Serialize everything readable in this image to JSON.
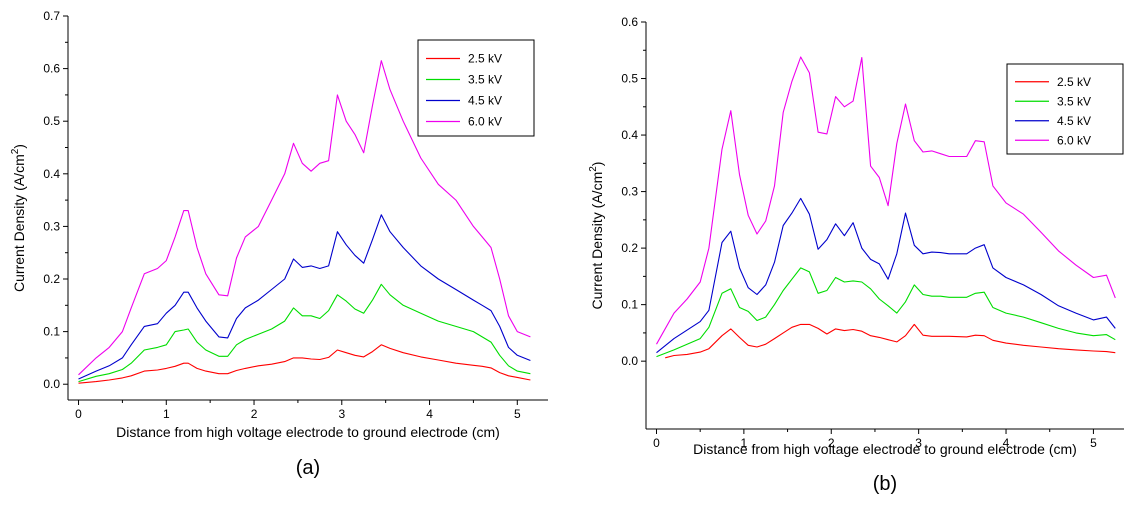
{
  "chart_data": [
    {
      "type": "line",
      "panel_label": "(a)",
      "xlabel": "Distance from high voltage electrode to ground electrode (cm)",
      "ylabel": "Current Density (A/cm",
      "ylabel_sup": "2",
      "ylabel_end": ")",
      "xlim": [
        -0.12,
        5.35
      ],
      "ylim": [
        -0.03,
        0.7
      ],
      "xticks": [
        0,
        1,
        2,
        3,
        4,
        5
      ],
      "xtick_labels": [
        "0",
        "1",
        "2",
        "3",
        "4",
        "5"
      ],
      "yticks": [
        0.0,
        0.1,
        0.2,
        0.3,
        0.4,
        0.5,
        0.6,
        0.7
      ],
      "ytick_labels": [
        "0.0",
        "0.1",
        "0.2",
        "0.3",
        "0.4",
        "0.5",
        "0.6",
        "0.7"
      ],
      "legend_position": "top-right",
      "grid": false,
      "series": [
        {
          "name": "2.5 kV",
          "color": "#ff0000",
          "x": [
            0.0,
            0.2,
            0.35,
            0.5,
            0.6,
            0.75,
            0.9,
            1.0,
            1.1,
            1.2,
            1.25,
            1.35,
            1.45,
            1.6,
            1.7,
            1.8,
            1.9,
            2.05,
            2.2,
            2.35,
            2.45,
            2.55,
            2.65,
            2.75,
            2.85,
            2.95,
            3.05,
            3.15,
            3.25,
            3.35,
            3.45,
            3.55,
            3.7,
            3.9,
            4.1,
            4.3,
            4.5,
            4.6,
            4.7,
            4.8,
            4.9,
            5.0,
            5.15
          ],
          "y": [
            0.002,
            0.005,
            0.008,
            0.012,
            0.016,
            0.025,
            0.027,
            0.03,
            0.034,
            0.04,
            0.04,
            0.03,
            0.025,
            0.02,
            0.02,
            0.026,
            0.03,
            0.035,
            0.038,
            0.043,
            0.05,
            0.05,
            0.048,
            0.047,
            0.051,
            0.065,
            0.06,
            0.055,
            0.052,
            0.062,
            0.075,
            0.068,
            0.06,
            0.052,
            0.046,
            0.04,
            0.036,
            0.034,
            0.031,
            0.022,
            0.016,
            0.013,
            0.008
          ]
        },
        {
          "name": "3.5  kV",
          "color": "#00dd00",
          "x": [
            0.0,
            0.2,
            0.35,
            0.5,
            0.6,
            0.75,
            0.9,
            1.0,
            1.1,
            1.2,
            1.25,
            1.35,
            1.45,
            1.6,
            1.7,
            1.8,
            1.9,
            2.05,
            2.2,
            2.35,
            2.45,
            2.55,
            2.65,
            2.75,
            2.85,
            2.95,
            3.05,
            3.15,
            3.25,
            3.35,
            3.45,
            3.55,
            3.7,
            3.9,
            4.1,
            4.3,
            4.5,
            4.6,
            4.7,
            4.8,
            4.9,
            5.0,
            5.15
          ],
          "y": [
            0.005,
            0.015,
            0.02,
            0.028,
            0.04,
            0.065,
            0.07,
            0.075,
            0.1,
            0.103,
            0.105,
            0.08,
            0.065,
            0.053,
            0.053,
            0.075,
            0.085,
            0.095,
            0.105,
            0.12,
            0.145,
            0.13,
            0.13,
            0.125,
            0.14,
            0.17,
            0.158,
            0.143,
            0.135,
            0.16,
            0.19,
            0.17,
            0.15,
            0.135,
            0.12,
            0.11,
            0.1,
            0.09,
            0.08,
            0.055,
            0.035,
            0.025,
            0.02
          ]
        },
        {
          "name": "4.5  kV",
          "color": "#0000cc",
          "x": [
            0.0,
            0.2,
            0.35,
            0.5,
            0.6,
            0.75,
            0.9,
            1.0,
            1.1,
            1.2,
            1.25,
            1.35,
            1.45,
            1.6,
            1.7,
            1.8,
            1.9,
            2.05,
            2.2,
            2.35,
            2.45,
            2.55,
            2.65,
            2.75,
            2.85,
            2.95,
            3.05,
            3.15,
            3.25,
            3.35,
            3.45,
            3.55,
            3.7,
            3.9,
            4.1,
            4.3,
            4.5,
            4.6,
            4.7,
            4.8,
            4.9,
            5.0,
            5.15
          ],
          "y": [
            0.01,
            0.025,
            0.035,
            0.05,
            0.075,
            0.11,
            0.115,
            0.135,
            0.15,
            0.175,
            0.175,
            0.145,
            0.12,
            0.09,
            0.088,
            0.125,
            0.145,
            0.16,
            0.18,
            0.2,
            0.238,
            0.222,
            0.225,
            0.22,
            0.225,
            0.29,
            0.265,
            0.245,
            0.23,
            0.275,
            0.322,
            0.29,
            0.26,
            0.225,
            0.2,
            0.18,
            0.16,
            0.15,
            0.14,
            0.11,
            0.07,
            0.055,
            0.045
          ]
        },
        {
          "name": "6.0  kV",
          "color": "#ee00ee",
          "x": [
            0.0,
            0.2,
            0.35,
            0.5,
            0.6,
            0.75,
            0.9,
            1.0,
            1.1,
            1.2,
            1.25,
            1.35,
            1.45,
            1.6,
            1.7,
            1.8,
            1.9,
            2.05,
            2.2,
            2.35,
            2.45,
            2.55,
            2.65,
            2.75,
            2.85,
            2.95,
            3.05,
            3.15,
            3.25,
            3.35,
            3.45,
            3.55,
            3.7,
            3.9,
            4.1,
            4.3,
            4.5,
            4.6,
            4.7,
            4.8,
            4.9,
            5.0,
            5.15
          ],
          "y": [
            0.018,
            0.05,
            0.07,
            0.1,
            0.145,
            0.21,
            0.22,
            0.235,
            0.28,
            0.33,
            0.33,
            0.26,
            0.21,
            0.17,
            0.168,
            0.24,
            0.28,
            0.3,
            0.35,
            0.4,
            0.458,
            0.42,
            0.405,
            0.42,
            0.425,
            0.55,
            0.5,
            0.475,
            0.44,
            0.53,
            0.615,
            0.56,
            0.5,
            0.43,
            0.38,
            0.35,
            0.3,
            0.28,
            0.26,
            0.2,
            0.13,
            0.1,
            0.09
          ]
        }
      ]
    },
    {
      "type": "line",
      "panel_label": "(b)",
      "xlabel": "Distance from high voltage electrode to ground electrode (cm)",
      "ylabel": "Current Density (A/cm",
      "ylabel_sup": "2",
      "ylabel_end": ")",
      "xlim": [
        -0.12,
        5.35
      ],
      "ylim": [
        -0.12,
        0.6
      ],
      "xticks": [
        0,
        1,
        2,
        3,
        4,
        5
      ],
      "xtick_labels": [
        "0",
        "1",
        "2",
        "3",
        "4",
        "5"
      ],
      "yticks": [
        0.0,
        0.1,
        0.2,
        0.3,
        0.4,
        0.5,
        0.6
      ],
      "ytick_labels": [
        "0.0",
        "0.1",
        "0.2",
        "0.3",
        "0.4",
        "0.5",
        "0.6"
      ],
      "legend_position": "top-right",
      "grid": false,
      "series": [
        {
          "name": "2.5 kV",
          "color": "#ff0000",
          "x": [
            0.1,
            0.2,
            0.35,
            0.5,
            0.6,
            0.75,
            0.85,
            0.95,
            1.05,
            1.15,
            1.25,
            1.35,
            1.45,
            1.55,
            1.65,
            1.75,
            1.85,
            1.95,
            2.05,
            2.15,
            2.25,
            2.35,
            2.45,
            2.55,
            2.65,
            2.75,
            2.85,
            2.95,
            3.05,
            3.15,
            3.25,
            3.35,
            3.55,
            3.65,
            3.75,
            3.85,
            4.0,
            4.2,
            4.4,
            4.6,
            4.8,
            5.0,
            5.15,
            5.25
          ],
          "y": [
            0.006,
            0.01,
            0.012,
            0.016,
            0.022,
            0.045,
            0.057,
            0.042,
            0.028,
            0.025,
            0.03,
            0.04,
            0.05,
            0.06,
            0.065,
            0.065,
            0.058,
            0.048,
            0.057,
            0.054,
            0.056,
            0.053,
            0.045,
            0.042,
            0.038,
            0.034,
            0.045,
            0.065,
            0.046,
            0.044,
            0.044,
            0.044,
            0.043,
            0.046,
            0.045,
            0.037,
            0.032,
            0.028,
            0.025,
            0.022,
            0.02,
            0.018,
            0.017,
            0.015
          ]
        },
        {
          "name": "3.5 kV",
          "color": "#00dd00",
          "x": [
            0.0,
            0.2,
            0.35,
            0.5,
            0.6,
            0.75,
            0.85,
            0.95,
            1.05,
            1.15,
            1.25,
            1.35,
            1.45,
            1.55,
            1.65,
            1.75,
            1.85,
            1.95,
            2.05,
            2.15,
            2.25,
            2.35,
            2.45,
            2.55,
            2.65,
            2.75,
            2.85,
            2.95,
            3.05,
            3.15,
            3.25,
            3.35,
            3.55,
            3.65,
            3.75,
            3.85,
            4.0,
            4.2,
            4.4,
            4.6,
            4.8,
            5.0,
            5.15,
            5.25
          ],
          "y": [
            0.008,
            0.02,
            0.03,
            0.04,
            0.06,
            0.12,
            0.128,
            0.095,
            0.088,
            0.072,
            0.078,
            0.1,
            0.125,
            0.145,
            0.165,
            0.158,
            0.12,
            0.125,
            0.148,
            0.14,
            0.142,
            0.14,
            0.128,
            0.11,
            0.098,
            0.085,
            0.105,
            0.135,
            0.118,
            0.115,
            0.115,
            0.113,
            0.113,
            0.12,
            0.122,
            0.095,
            0.085,
            0.078,
            0.068,
            0.058,
            0.05,
            0.045,
            0.047,
            0.038
          ]
        },
        {
          "name": "4.5 kV",
          "color": "#0000cc",
          "x": [
            0.0,
            0.2,
            0.35,
            0.5,
            0.6,
            0.75,
            0.85,
            0.95,
            1.05,
            1.15,
            1.25,
            1.35,
            1.45,
            1.55,
            1.65,
            1.75,
            1.85,
            1.95,
            2.05,
            2.15,
            2.25,
            2.35,
            2.45,
            2.55,
            2.65,
            2.75,
            2.85,
            2.95,
            3.05,
            3.15,
            3.25,
            3.35,
            3.55,
            3.65,
            3.75,
            3.85,
            4.0,
            4.2,
            4.4,
            4.6,
            4.8,
            5.0,
            5.15,
            5.25
          ],
          "y": [
            0.015,
            0.04,
            0.055,
            0.07,
            0.09,
            0.21,
            0.23,
            0.165,
            0.13,
            0.118,
            0.135,
            0.175,
            0.24,
            0.262,
            0.288,
            0.26,
            0.198,
            0.215,
            0.243,
            0.222,
            0.245,
            0.2,
            0.18,
            0.172,
            0.145,
            0.19,
            0.262,
            0.205,
            0.19,
            0.193,
            0.192,
            0.19,
            0.19,
            0.2,
            0.206,
            0.165,
            0.148,
            0.135,
            0.118,
            0.098,
            0.085,
            0.073,
            0.078,
            0.058
          ]
        },
        {
          "name": "6.0 kV",
          "color": "#ee00ee",
          "x": [
            0.0,
            0.2,
            0.35,
            0.5,
            0.6,
            0.75,
            0.85,
            0.95,
            1.05,
            1.15,
            1.25,
            1.35,
            1.45,
            1.55,
            1.65,
            1.75,
            1.85,
            1.95,
            2.05,
            2.15,
            2.25,
            2.35,
            2.45,
            2.55,
            2.65,
            2.75,
            2.85,
            2.95,
            3.05,
            3.15,
            3.25,
            3.35,
            3.55,
            3.65,
            3.75,
            3.85,
            4.0,
            4.2,
            4.4,
            4.6,
            4.8,
            5.0,
            5.15,
            5.25
          ],
          "y": [
            0.03,
            0.085,
            0.11,
            0.14,
            0.2,
            0.375,
            0.443,
            0.33,
            0.258,
            0.225,
            0.248,
            0.31,
            0.44,
            0.495,
            0.538,
            0.51,
            0.405,
            0.402,
            0.468,
            0.45,
            0.46,
            0.537,
            0.345,
            0.325,
            0.275,
            0.385,
            0.455,
            0.39,
            0.37,
            0.372,
            0.367,
            0.362,
            0.362,
            0.39,
            0.388,
            0.31,
            0.28,
            0.26,
            0.228,
            0.195,
            0.17,
            0.148,
            0.152,
            0.112
          ]
        }
      ]
    }
  ]
}
